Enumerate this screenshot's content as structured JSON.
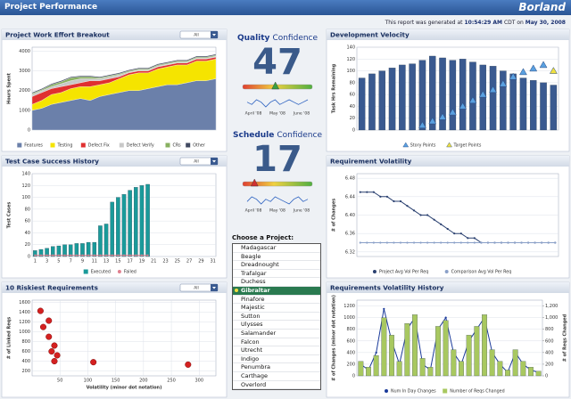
{
  "header": {
    "title": "Project Performance",
    "logo": "Borland"
  },
  "report": {
    "prefix": "This report was generated at",
    "time": "10:54:29 AM",
    "middle": "CDT on",
    "date": "May 30, 2008"
  },
  "gauges": [
    {
      "title": "Quality",
      "subtitle": "Confidence",
      "value": 47,
      "range": [
        0,
        100
      ],
      "marker_color": "#3aa040",
      "months": [
        "April '08",
        "May '08",
        "June '08"
      ],
      "trend": [
        5,
        4,
        6,
        5,
        3,
        5,
        6,
        4,
        5,
        6,
        5,
        4,
        5,
        6
      ]
    },
    {
      "title": "Schedule",
      "subtitle": "Confidence",
      "value": 17,
      "range": [
        0,
        100
      ],
      "marker_color": "#d03030",
      "months": [
        "April '08",
        "May '08",
        "June '08"
      ],
      "trend": [
        4,
        6,
        5,
        3,
        5,
        4,
        6,
        5,
        4,
        3,
        5,
        6,
        4,
        5
      ]
    }
  ],
  "chooser": {
    "label": "Choose a Project:",
    "items": [
      "Madagascar",
      "Beagle",
      "Dreadnought",
      "Trafalgar",
      "Duchess",
      "Gibraltar",
      "Pinafore",
      "Majestic",
      "Sutton",
      "Ulysses",
      "Salamander",
      "Falcon",
      "Utrecht",
      "Indigo",
      "Penumbra",
      "Carthage",
      "Overlord"
    ],
    "selected": 5
  },
  "chart_data": [
    {
      "type": "area",
      "title": "Project Work Effort Breakout",
      "dropdown": "All",
      "ylabel": "Hours Spent",
      "ylim": [
        0,
        4200
      ],
      "yticks": [
        0,
        1000,
        2000,
        3000,
        4000
      ],
      "grid": true,
      "series": [
        {
          "name": "Features",
          "color": "#6b80aa",
          "values": [
            1000,
            1100,
            1300,
            1400,
            1500,
            1600,
            1500,
            1700,
            1800,
            1900,
            2000,
            2000,
            2100,
            2200,
            2300,
            2300,
            2400,
            2500,
            2500,
            2600
          ]
        },
        {
          "name": "Testing",
          "color": "#f5e400",
          "values": [
            300,
            400,
            500,
            500,
            600,
            600,
            700,
            600,
            600,
            700,
            800,
            900,
            800,
            900,
            900,
            1000,
            900,
            1000,
            1000,
            1000
          ]
        },
        {
          "name": "Defect Fix",
          "color": "#e03030",
          "values": [
            400,
            400,
            300,
            300,
            200,
            200,
            300,
            200,
            200,
            100,
            100,
            100,
            100,
            100,
            100,
            100,
            100,
            100,
            100,
            100
          ]
        },
        {
          "name": "Defect Verify",
          "color": "#c8c8c8",
          "values": [
            100,
            100,
            100,
            150,
            200,
            200,
            100,
            100,
            100,
            100,
            50,
            50,
            50,
            50,
            50,
            50,
            50,
            50,
            50,
            50
          ]
        },
        {
          "name": "CRs",
          "color": "#88b060",
          "values": [
            50,
            50,
            100,
            100,
            150,
            100,
            100,
            50,
            50,
            50,
            50,
            50,
            50,
            50,
            50,
            50,
            50,
            50,
            50,
            50
          ]
        },
        {
          "name": "Other",
          "color": "#404860",
          "values": [
            50,
            50,
            50,
            50,
            50,
            50,
            50,
            50,
            50,
            50,
            50,
            50,
            50,
            50,
            50,
            50,
            50,
            50,
            50,
            50
          ]
        }
      ]
    },
    {
      "type": "bar",
      "title": "Test Case Success History",
      "dropdown": "All",
      "ylabel": "Test Cases",
      "ylim": [
        0,
        140
      ],
      "yticks": [
        0,
        20,
        40,
        60,
        80,
        100,
        120,
        140
      ],
      "grid": true,
      "categories": [
        "1",
        null,
        "3",
        null,
        "5",
        null,
        "7",
        null,
        "9",
        null,
        "11",
        null,
        "13",
        null,
        "15",
        null,
        "17",
        null,
        "19",
        null,
        "21",
        null,
        "23",
        null,
        "25",
        null,
        "27",
        null,
        "29",
        null,
        "31"
      ],
      "series": [
        {
          "name": "Executed",
          "kind": "bar",
          "color": "#1a9a9a",
          "values": [
            10,
            12,
            14,
            17,
            18,
            20,
            20,
            22,
            22,
            24,
            24,
            52,
            55,
            92,
            100,
            105,
            112,
            117,
            120,
            122,
            null,
            null,
            null,
            null,
            null,
            null,
            null,
            null,
            null,
            null,
            null
          ]
        },
        {
          "name": "Failed",
          "kind": "line",
          "color": "#e08090",
          "values": [
            2,
            2,
            2,
            2,
            2,
            2,
            2,
            2,
            2,
            2,
            2,
            2,
            2,
            2,
            2,
            2,
            2,
            2,
            2,
            2,
            null,
            null,
            null,
            null,
            null,
            null,
            null,
            null,
            null,
            null,
            null
          ]
        }
      ]
    },
    {
      "type": "scatter",
      "title": "10 Riskiest Requirements",
      "dropdown": "All",
      "xlabel": "Volatility (minor dot notation)",
      "ylabel": "# of Linked Reqs",
      "xlim": [
        0,
        330
      ],
      "xticks": [
        50,
        100,
        150,
        200,
        250,
        300
      ],
      "ylim": [
        100,
        1650
      ],
      "yticks": [
        200,
        400,
        600,
        800,
        1000,
        1200,
        1400,
        1600
      ],
      "grid": true,
      "color": "#d42020",
      "x": [
        15,
        30,
        20,
        30,
        40,
        35,
        45,
        40,
        110,
        280
      ],
      "values": [
        1430,
        1230,
        1100,
        900,
        720,
        600,
        520,
        400,
        380,
        330
      ]
    },
    {
      "type": "bar",
      "title": "Development Velocity",
      "ylabel": "Task Hrs Remaining",
      "ylim": [
        0,
        140
      ],
      "yticks": [
        0,
        20,
        40,
        60,
        80,
        100,
        120,
        140
      ],
      "grid": true,
      "series": [
        {
          "kind": "bar",
          "color": "#3a5a90",
          "values": [
            88,
            95,
            100,
            105,
            110,
            112,
            118,
            125,
            122,
            118,
            120,
            115,
            110,
            108,
            100,
            95,
            88,
            84,
            80,
            76
          ]
        },
        {
          "name": "Story Points",
          "kind": "triangle",
          "color": "#5aa0e0",
          "values": [
            null,
            null,
            null,
            null,
            null,
            null,
            8,
            15,
            22,
            30,
            40,
            50,
            60,
            68,
            78,
            90,
            98,
            104,
            110,
            null
          ]
        },
        {
          "name": "Target Points",
          "kind": "triangle",
          "color": "#f0e040",
          "values": [
            null,
            null,
            null,
            null,
            null,
            null,
            null,
            null,
            null,
            null,
            null,
            null,
            null,
            null,
            null,
            null,
            null,
            null,
            null,
            100
          ]
        }
      ]
    },
    {
      "type": "line",
      "title": "Requirement Volatility",
      "ylabel": "# of Changes",
      "ylim": [
        6.31,
        6.49
      ],
      "yticks": [
        6.32,
        6.36,
        {
          "value": 6.4,
          "label": "6.40"
        },
        6.44,
        6.48
      ],
      "grid": true,
      "series": [
        {
          "name": "Project Avg Vol Per Req",
          "kind": "line",
          "color": "#2a4070",
          "values": [
            6.45,
            6.45,
            6.45,
            6.44,
            6.44,
            6.43,
            6.43,
            6.42,
            6.41,
            6.4,
            6.4,
            6.39,
            6.38,
            6.37,
            6.36,
            6.36,
            6.35,
            6.35,
            6.34,
            6.34,
            6.34,
            6.34,
            6.34,
            6.34,
            6.34,
            6.34,
            6.34,
            6.34,
            6.34,
            6.34
          ]
        },
        {
          "name": "Comparison Avg Vol Per Req",
          "kind": "line",
          "color": "#8aa0c8",
          "values": [
            6.34,
            6.34,
            6.34,
            6.34,
            6.34,
            6.34,
            6.34,
            6.34,
            6.34,
            6.34,
            6.34,
            6.34,
            6.34,
            6.34,
            6.34,
            6.34,
            6.34,
            6.34,
            6.34,
            6.34,
            6.34,
            6.34,
            6.34,
            6.34,
            6.34,
            6.34,
            6.34,
            6.34,
            6.34,
            6.34
          ]
        }
      ]
    },
    {
      "type": "combo",
      "title": "Requirements Volatility History",
      "ylabel": "# of Changes (minor dot notation)",
      "y2label": "# of Reqs Changed",
      "ylim": [
        0,
        1300
      ],
      "yticks": [
        0,
        200,
        400,
        600,
        800,
        1000,
        1200
      ],
      "y2lim": [
        0,
        1300
      ],
      "y2ticks": [
        0,
        200,
        400,
        600,
        800,
        {
          "value": 1000,
          "label": "1,000"
        },
        {
          "value": 1200,
          "label": "1,200"
        }
      ],
      "grid": true,
      "series": [
        {
          "name": "Num In Day Changes",
          "kind": "line",
          "color": "#1a3a9a",
          "values": [
            200,
            100,
            400,
            1150,
            600,
            200,
            800,
            1000,
            200,
            100,
            800,
            1000,
            400,
            200,
            600,
            800,
            1000,
            400,
            200,
            60,
            400,
            200,
            100,
            60
          ]
        },
        {
          "name": "Number of Reqs Changed",
          "kind": "bar",
          "axis": "y2",
          "color": "#a8c860",
          "values": [
            250,
            150,
            350,
            1000,
            700,
            250,
            900,
            1050,
            300,
            150,
            850,
            950,
            450,
            250,
            700,
            850,
            1050,
            450,
            250,
            100,
            450,
            250,
            150,
            80
          ]
        }
      ]
    }
  ]
}
